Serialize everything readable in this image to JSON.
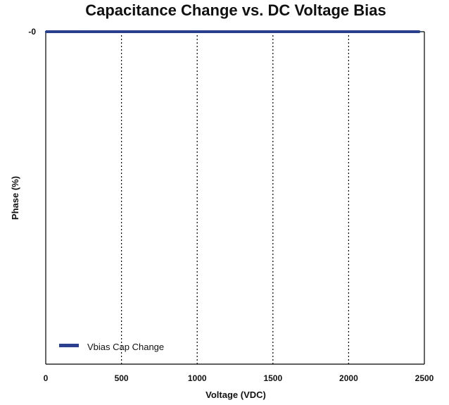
{
  "chart_data": {
    "type": "line",
    "title": "Capacitance Change vs. DC Voltage Bias",
    "xlabel": "Voltage (VDC)",
    "ylabel": "Phase (%)",
    "xlim": [
      0,
      2500
    ],
    "ylim": [
      -100,
      0
    ],
    "x_ticks": [
      0,
      500,
      1000,
      1500,
      2000,
      2500
    ],
    "x_tick_labels": [
      "0",
      "500",
      "1000",
      "1500",
      "2000",
      "2500"
    ],
    "y_ticks": [
      0
    ],
    "y_tick_labels": [
      "-0"
    ],
    "grid": {
      "x": true,
      "y": false,
      "style": "dotted"
    },
    "legend_position": "bottom-left",
    "series": [
      {
        "name": "Vbias Cap Change",
        "color": "#2b3f8f",
        "x": [
          0,
          250,
          500,
          750,
          1000,
          1250,
          1500,
          1750,
          2000,
          2250,
          2470
        ],
        "y": [
          0,
          0,
          0,
          0,
          0,
          0,
          0,
          0,
          0,
          0,
          0
        ]
      }
    ]
  }
}
